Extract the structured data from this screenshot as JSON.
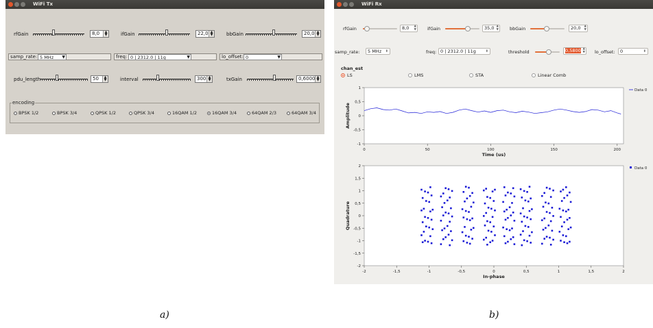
{
  "tx": {
    "title": "WiFi Tx",
    "rfgain": {
      "label": "rfGain",
      "value": "8,0",
      "level": 0.4
    },
    "ifgain": {
      "label": "ifGain",
      "value": "22,0",
      "level": 0.55
    },
    "bbgain": {
      "label": "bbGain",
      "value": "20,0",
      "level": 0.55
    },
    "samp_rate": {
      "label": "samp_rate:",
      "value": "5 MHz"
    },
    "freq": {
      "label": "freq:",
      "value": "0 | 2312.0 | 11g"
    },
    "lo_offset": {
      "label": "lo_offset:",
      "value": "0"
    },
    "pdu_length": {
      "label": "pdu_length",
      "value": "50",
      "level": 0.35
    },
    "interval": {
      "label": "interval",
      "value": "300",
      "level": 0.3
    },
    "txgain": {
      "label": "txGain",
      "value": "0,6000",
      "level": 0.6
    },
    "encoding": {
      "title": "encoding",
      "options": [
        "BPSK 1/2",
        "BPSK 3/4",
        "QPSK 1/2",
        "QPSK 3/4",
        "16QAM 1/2",
        "16QAM 3/4",
        "64QAM 2/3",
        "64QAM 3/4"
      ],
      "selected": "16QAM 3/4"
    }
  },
  "rx": {
    "title": "WiFi Rx",
    "rfgain": {
      "label": "rfGain",
      "value": "8,0",
      "level": 0.12
    },
    "ifgain": {
      "label": "ifGain",
      "value": "35,0",
      "level": 0.65
    },
    "bbgain": {
      "label": "bbGain",
      "value": "20,0",
      "level": 0.48
    },
    "samp_rate": {
      "label": "samp_rate:",
      "value": "5 MHz"
    },
    "freq": {
      "label": "freq:",
      "value": "0 | 2312.0 | 11g"
    },
    "threshold": {
      "label": "threshold",
      "value": "0,5800",
      "level": 0.55
    },
    "lo_offset": {
      "label": "lo_offset:",
      "value": "0"
    },
    "chan_est": {
      "label": "chan_est",
      "options": [
        "LS",
        "LMS",
        "STA",
        "Linear Comb"
      ],
      "selected": "LS"
    },
    "colors": {
      "accent": "#e2572c",
      "series": "#1b1bd6"
    }
  },
  "chart_data": [
    {
      "type": "line",
      "xlabel": "Time (us)",
      "ylabel": "Amplitude",
      "xlim": [
        0,
        205
      ],
      "ylim": [
        -1,
        1
      ],
      "xticks": [
        "0",
        "50",
        "100",
        "150",
        "200"
      ],
      "yticks": [
        "-1",
        "-0,5",
        "0",
        "0,5",
        "1"
      ],
      "legend": "top-right",
      "series": [
        {
          "name": "Data 0",
          "color": "#1b1bd6",
          "x": [
            0,
            5,
            10,
            15,
            20,
            25,
            30,
            35,
            40,
            45,
            50,
            55,
            60,
            65,
            70,
            75,
            80,
            85,
            90,
            95,
            100,
            105,
            110,
            115,
            120,
            125,
            130,
            135,
            140,
            145,
            150,
            155,
            160,
            165,
            170,
            175,
            180,
            185,
            190,
            195,
            200,
            203
          ],
          "y": [
            0.18,
            0.25,
            0.28,
            0.22,
            0.2,
            0.24,
            0.17,
            0.1,
            0.12,
            0.08,
            0.14,
            0.12,
            0.15,
            0.08,
            0.12,
            0.2,
            0.24,
            0.18,
            0.13,
            0.17,
            0.12,
            0.18,
            0.2,
            0.14,
            0.11,
            0.16,
            0.13,
            0.08,
            0.11,
            0.14,
            0.2,
            0.24,
            0.2,
            0.15,
            0.12,
            0.15,
            0.22,
            0.2,
            0.14,
            0.18,
            0.1,
            0.06
          ]
        }
      ]
    },
    {
      "type": "scatter",
      "xlabel": "In-phase",
      "ylabel": "Quadrature",
      "xlim": [
        -2,
        2
      ],
      "ylim": [
        -2,
        2
      ],
      "xticks": [
        "-2",
        "-1,5",
        "-1",
        "-0,5",
        "0",
        "0,5",
        "1",
        "1,5",
        "2"
      ],
      "yticks": [
        "-2",
        "-1,5",
        "-1",
        "-0,5",
        "0",
        "0,5",
        "1",
        "1,5",
        "2"
      ],
      "legend": "top-right",
      "series": [
        {
          "name": "Data 0",
          "color": "#1b1bd6",
          "columns_x": [
            -1.08,
            -0.98,
            -0.78,
            -0.68,
            -0.45,
            -0.35,
            -0.12,
            -0.02,
            0.18,
            0.28,
            0.45,
            0.55,
            0.78,
            0.88,
            1.05,
            1.15
          ],
          "rows_y": [
            1.1,
            0.95,
            0.75,
            0.55,
            0.3,
            0.15,
            -0.05,
            -0.2,
            -0.45,
            -0.6,
            -0.82,
            -0.98,
            -1.12
          ]
        }
      ]
    }
  ],
  "captions": {
    "a": "a)",
    "b": "b)"
  }
}
